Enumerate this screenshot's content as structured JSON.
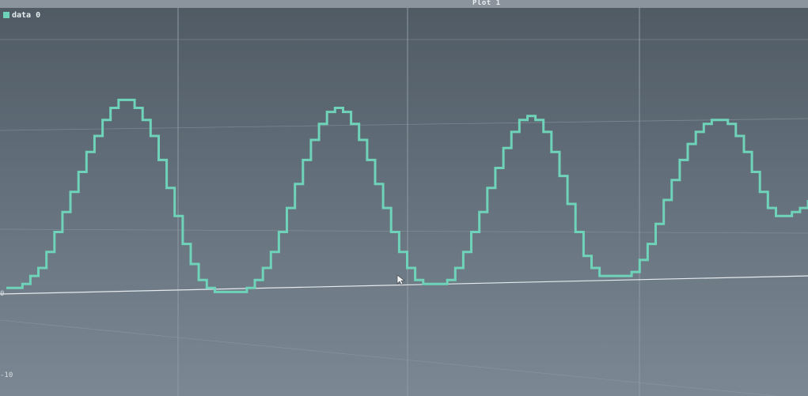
{
  "window": {
    "title": "Plot 1"
  },
  "legend": {
    "items": [
      {
        "label": "data 0",
        "color": "#6fd3b9"
      }
    ]
  },
  "colors": {
    "series": "#6fd3b9",
    "grid": "#8e9aa4",
    "zero_line": "#e4eaee"
  },
  "axes": {
    "y_tick_labels": [
      "0",
      "-10"
    ]
  },
  "chart_data": {
    "type": "line",
    "title": "Plot 1",
    "xlabel": "",
    "ylabel": "",
    "grid": true,
    "legend_position": "top-left",
    "xlim": [
      0,
      1000
    ],
    "ylim": [
      -12.5,
      36
    ],
    "series": [
      {
        "name": "data 0",
        "x": [
          0,
          10,
          20,
          30,
          40,
          50,
          60,
          70,
          80,
          90,
          100,
          110,
          120,
          130,
          140,
          150,
          160,
          170,
          180,
          190,
          200,
          210,
          220,
          230,
          240,
          250,
          260,
          270,
          280,
          290,
          300,
          310,
          320,
          330,
          340,
          350,
          360,
          370,
          380,
          390,
          400,
          410,
          420,
          430,
          440,
          450,
          460,
          470,
          480,
          490,
          500,
          510,
          520,
          530,
          540,
          550,
          560,
          570,
          580,
          590,
          600,
          610,
          620,
          630,
          640,
          650,
          660,
          670,
          680,
          690,
          700,
          710,
          720,
          730,
          740,
          750,
          760,
          770,
          780,
          790,
          800,
          810,
          820,
          830,
          840,
          850,
          860,
          870,
          880,
          890,
          900,
          910,
          920,
          930,
          940,
          950,
          960,
          970,
          980,
          990,
          1000
        ],
        "y": [
          1,
          1,
          1.5,
          2.5,
          3.5,
          5.5,
          8,
          10.5,
          13,
          15.5,
          18,
          20,
          22,
          23.5,
          24.5,
          24.5,
          23.5,
          22,
          20,
          17,
          13.5,
          10,
          6.5,
          4,
          2,
          1,
          0.5,
          0.5,
          0.5,
          0.5,
          1,
          2,
          3.5,
          5.5,
          8,
          11,
          14,
          17,
          19.5,
          21.5,
          23,
          23.5,
          23,
          21.5,
          19.5,
          17,
          14,
          11,
          8,
          5.5,
          3.5,
          2,
          1.5,
          1.5,
          1.5,
          2,
          3.5,
          5.5,
          8,
          10.5,
          13.5,
          16,
          18.5,
          20.5,
          22,
          22.5,
          22,
          20.5,
          18,
          15,
          11.5,
          8,
          5,
          3.5,
          2.5,
          2.5,
          2.5,
          2.5,
          3,
          4.5,
          6.5,
          9,
          12,
          14.5,
          17,
          19,
          20.5,
          21.5,
          22,
          22,
          21.5,
          20,
          18,
          15.5,
          13,
          11,
          10,
          10,
          10.5,
          11,
          12
        ]
      }
    ]
  }
}
